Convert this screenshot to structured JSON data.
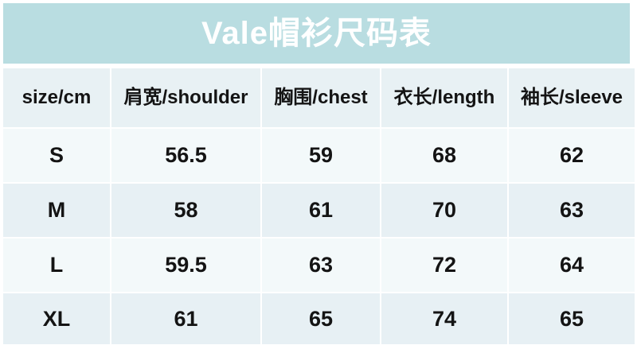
{
  "page": {
    "title": "Vale帽衫尺码表"
  },
  "colors": {
    "title_bar_bg": "#b9dde1",
    "title_text": "#ffffff",
    "header_row_bg": "#e8f1f4",
    "row_light_bg": "#f3f9fa",
    "row_shaded_bg": "#e7f0f4",
    "cell_text": "#141414",
    "page_bg": "#ffffff"
  },
  "chart_data": {
    "type": "table",
    "title": "Vale帽衫尺码表",
    "columns": [
      "size/cm",
      "肩宽/shoulder",
      "胸围/chest",
      "衣长/length",
      "袖长/sleeve"
    ],
    "rows": [
      [
        "S",
        56.5,
        59,
        68,
        62
      ],
      [
        "M",
        58,
        61,
        70,
        63
      ],
      [
        "L",
        59.5,
        63,
        72,
        64
      ],
      [
        "XL",
        61,
        65,
        74,
        65
      ]
    ]
  }
}
